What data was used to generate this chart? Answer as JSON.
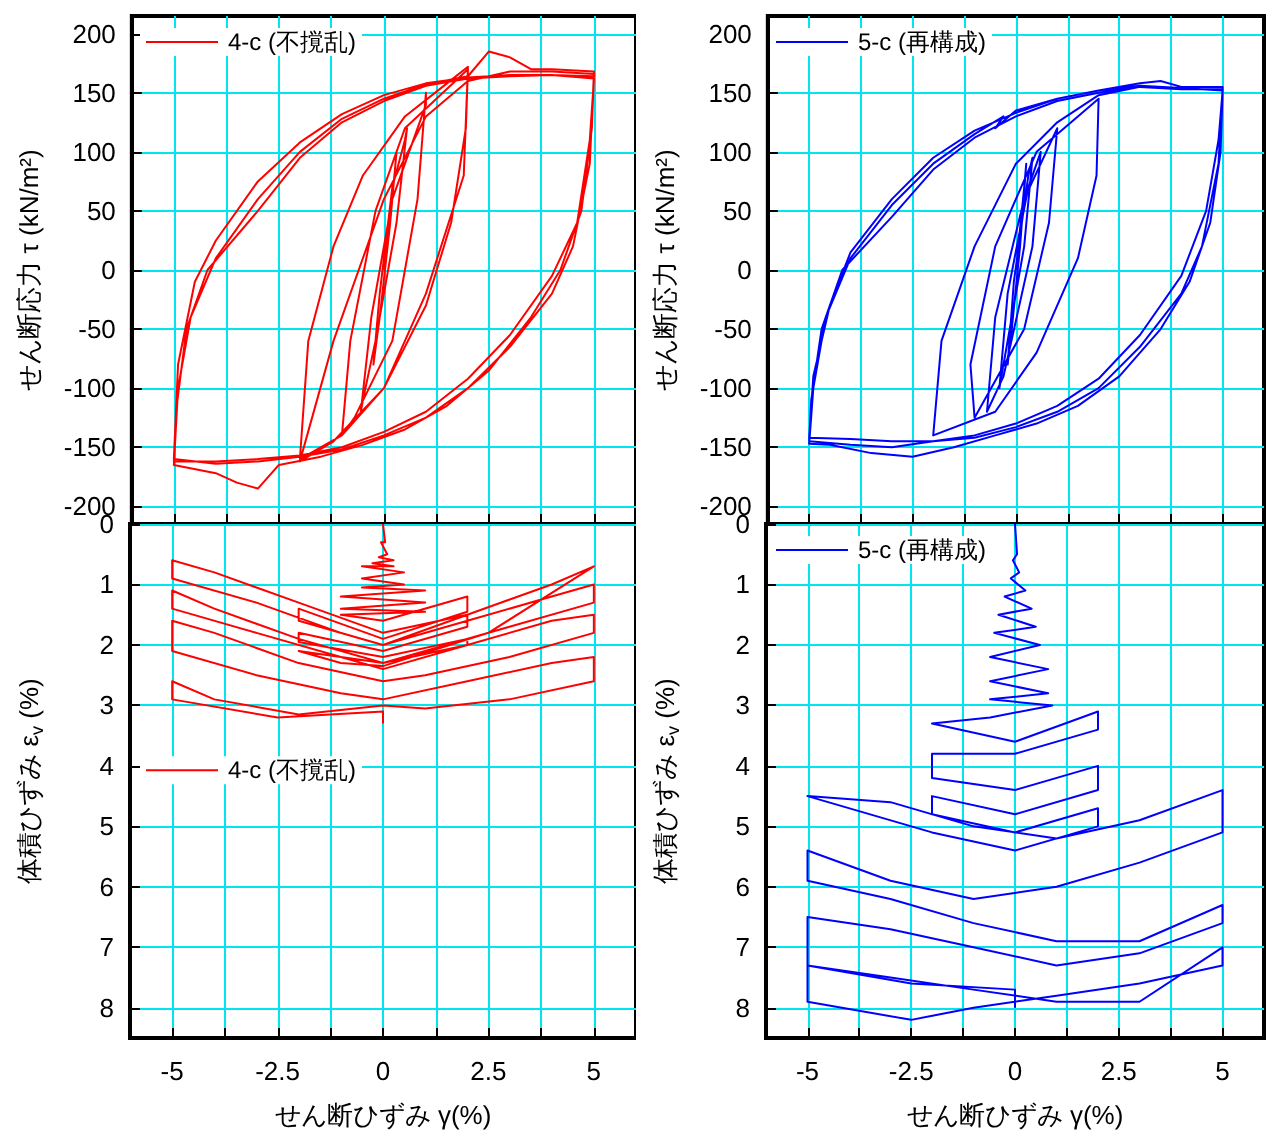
{
  "chart_data": [
    {
      "type": "line",
      "ylabel": "せん断応力 τ (kN/m²)",
      "xlim": [
        -6,
        6
      ],
      "xticks": [
        -5,
        {
          "value": -3.75,
          "label": null
        },
        -2.5,
        {
          "value": -1.25,
          "label": null
        },
        0,
        {
          "value": 1.25,
          "label": null
        },
        2.5,
        {
          "value": 3.75,
          "label": null
        },
        5
      ],
      "ylim": [
        -215,
        215
      ],
      "yticks": [
        -200,
        -150,
        -100,
        -50,
        0,
        50,
        100,
        150,
        200
      ],
      "tick_labels": "y",
      "grid": true,
      "legend": "top left",
      "marker": "none",
      "line_style": "solid",
      "series": [
        {
          "name": "4-c (不撹乱)",
          "color": "#ff0000",
          "x": [
            0,
            0.25,
            0.3,
            0.15,
            -0.1,
            -0.25,
            -0.1,
            0.2,
            0.5,
            0.55,
            0.3,
            -0.2,
            -0.5,
            -0.55,
            -0.3,
            0.2,
            1,
            1,
            0.8,
            0.2,
            -0.7,
            -1,
            -0.8,
            -0.2,
            0.5,
            2,
            1.95,
            1.6,
            1,
            0,
            -1,
            -2,
            -1.8,
            -1.2,
            -0.5,
            0.5,
            1.5,
            2,
            1.9,
            1,
            0,
            -1.2,
            -2,
            -1.2,
            0,
            1,
            2,
            3,
            4,
            5,
            4.95,
            4.7,
            4.2,
            3.5,
            2.5,
            1.5,
            0.5,
            -0.5,
            -1.5,
            -2.5,
            -3,
            -3.5,
            -4,
            -5,
            -4.9,
            -4.6,
            -4,
            -3,
            -2,
            -1,
            0,
            1,
            2,
            2.5,
            3,
            3.5,
            4,
            5,
            4.9,
            4.5,
            4,
            3,
            2,
            1,
            0,
            -1,
            -2,
            -3,
            -4,
            -5,
            -4.9,
            -4.5,
            -4,
            -3,
            -2,
            -1,
            0,
            1,
            2,
            3,
            4,
            5,
            4.9,
            4.6,
            4,
            3,
            2,
            1,
            0,
            -1,
            -2,
            -3,
            -4,
            -5,
            -4.95,
            -4.7,
            -4.2,
            -3,
            -2,
            -1,
            0,
            1,
            2,
            3,
            4,
            5
          ],
          "values": [
            0,
            80,
            100,
            40,
            -40,
            -80,
            -20,
            70,
            110,
            120,
            40,
            -60,
            -110,
            -120,
            -40,
            60,
            140,
            150,
            60,
            -60,
            -125,
            -140,
            -60,
            50,
            120,
            170,
            120,
            40,
            -30,
            -100,
            -140,
            -160,
            -60,
            20,
            80,
            130,
            158,
            172,
            80,
            -20,
            -100,
            -145,
            -162,
            -60,
            60,
            130,
            160,
            168,
            168,
            166,
            120,
            50,
            0,
            -40,
            -85,
            -115,
            -135,
            -148,
            -158,
            -165,
            -185,
            -180,
            -172,
            -165,
            -100,
            -40,
            10,
            60,
            100,
            128,
            145,
            157,
            164,
            185,
            180,
            170,
            170,
            168,
            90,
            20,
            -20,
            -65,
            -100,
            -125,
            -140,
            -152,
            -158,
            -162,
            -164,
            -160,
            -80,
            -10,
            25,
            75,
            108,
            132,
            148,
            158,
            163,
            165,
            165,
            162,
            110,
            40,
            -5,
            -55,
            -92,
            -120,
            -137,
            -150,
            -157,
            -160,
            -162,
            -162,
            -120,
            -50,
            0,
            50,
            95,
            125,
            143,
            156,
            162,
            164,
            165,
            164
          ]
        }
      ]
    },
    {
      "type": "line",
      "ylabel": "せん断応力 τ (kN/m²)",
      "xlim": [
        -6,
        6
      ],
      "xticks": [
        -5,
        {
          "value": -3.75,
          "label": null
        },
        -2.5,
        {
          "value": -1.25,
          "label": null
        },
        0,
        {
          "value": 1.25,
          "label": null
        },
        2.5,
        {
          "value": 3.75,
          "label": null
        },
        5
      ],
      "ylim": [
        -215,
        215
      ],
      "yticks": [
        -200,
        -150,
        -100,
        -50,
        0,
        50,
        100,
        150,
        200
      ],
      "tick_labels": "y",
      "grid": true,
      "legend": "top left",
      "marker": "none",
      "line_style": "solid",
      "series": [
        {
          "name": "5-c (再構成)",
          "color": "#0000ff",
          "x": [
            0,
            0.2,
            0.25,
            0.1,
            -0.1,
            -0.2,
            -0.05,
            0.3,
            0.4,
            0.2,
            -0.3,
            -0.4,
            -0.2,
            0.3,
            0.6,
            0.4,
            -0.3,
            -0.7,
            -0.5,
            0.2,
            1,
            0.8,
            0.2,
            -1,
            -1.1,
            -0.5,
            0.5,
            2,
            1.95,
            1.5,
            0.5,
            -0.5,
            -2,
            -1.8,
            -1,
            0,
            1,
            2,
            3,
            4,
            5,
            4.95,
            4.7,
            4.2,
            3.5,
            2.5,
            1.5,
            0.5,
            -0.5,
            -1.5,
            -2.5,
            -3.5,
            -4.5,
            -5,
            -4.9,
            -4.6,
            -4,
            -3,
            -2,
            -1,
            -0.3,
            -0.5,
            0,
            1,
            2,
            3,
            3.5,
            4,
            5,
            4.9,
            4.5,
            4,
            3,
            2,
            1,
            0,
            -1,
            -2,
            -3,
            -4,
            -5,
            -4.9,
            -4.5,
            -4,
            -3,
            -2,
            -1,
            0,
            1,
            2,
            3,
            4,
            5,
            4.9,
            4.6,
            4,
            3,
            2,
            1,
            0,
            -1,
            -2,
            -3,
            -4,
            -5,
            -4.95,
            -4.7,
            -4.2,
            -3,
            -2,
            -1,
            0,
            1,
            2,
            3,
            4,
            5
          ],
          "values": [
            0,
            70,
            90,
            20,
            -50,
            -80,
            -10,
            80,
            95,
            20,
            -80,
            -100,
            -20,
            70,
            100,
            20,
            -90,
            -120,
            -40,
            60,
            120,
            40,
            -50,
            -125,
            -80,
            20,
            100,
            145,
            80,
            10,
            -70,
            -120,
            -140,
            -60,
            20,
            90,
            125,
            148,
            155,
            153,
            153,
            100,
            40,
            -10,
            -50,
            -90,
            -115,
            -130,
            -140,
            -150,
            -158,
            -155,
            -148,
            -147,
            -100,
            -40,
            10,
            55,
            90,
            115,
            130,
            120,
            135,
            145,
            152,
            158,
            160,
            155,
            155,
            90,
            20,
            -20,
            -65,
            -100,
            -120,
            -133,
            -142,
            -145,
            -145,
            -143,
            -142,
            -90,
            -30,
            15,
            60,
            95,
            118,
            133,
            145,
            152,
            156,
            154,
            152,
            110,
            50,
            -5,
            -55,
            -92,
            -115,
            -130,
            -140,
            -145,
            -150,
            -148,
            -145,
            -110,
            -50,
            0,
            45,
            85,
            112,
            130,
            143,
            150,
            155,
            153,
            153
          ]
        }
      ]
    },
    {
      "type": "line",
      "ylabel": "体積ひずみ ε$_{v}$ (%)",
      "xlabel": "せん断ひずみ γ(%)",
      "xlim": [
        -6,
        6
      ],
      "xticks": [
        -5,
        {
          "value": -3.75,
          "label": null
        },
        -2.5,
        {
          "value": -1.25,
          "label": null
        },
        0,
        {
          "value": 1.25,
          "label": null
        },
        2.5,
        {
          "value": 3.75,
          "label": null
        },
        5
      ],
      "ylim": [
        8.5,
        0
      ],
      "yticks": [
        0,
        1,
        2,
        3,
        4,
        5,
        6,
        7,
        8
      ],
      "grid": true,
      "legend": "left",
      "marker": "none",
      "line_style": "solid",
      "series": [
        {
          "name": "4-c (不撹乱)",
          "color": "#ff0000",
          "x": [
            0,
            0.05,
            -0.05,
            0.1,
            -0.1,
            0.25,
            -0.25,
            0.25,
            -0.5,
            0.5,
            -0.5,
            0.5,
            -0.5,
            1,
            -1,
            1,
            -1,
            1,
            -1,
            0,
            2,
            2,
            0,
            -2,
            -2,
            0,
            2,
            2,
            0,
            -2,
            -2,
            0,
            2,
            2,
            0,
            -2,
            -1,
            0,
            2.5,
            5,
            4,
            2,
            0,
            -2,
            -4,
            -5,
            -5,
            -3,
            -1,
            0,
            2,
            4,
            5,
            5,
            3,
            1,
            0,
            -2,
            -4,
            -5,
            -5,
            -3,
            -1,
            0,
            2,
            4,
            5,
            5,
            3,
            1,
            0,
            -2,
            -4,
            -5,
            -5,
            -3,
            -1,
            0,
            2,
            4,
            5,
            5,
            3,
            1,
            0,
            -2,
            -4,
            -5,
            -5,
            -2.5,
            0,
            0
          ],
          "values": [
            0,
            0.3,
            0.3,
            0.5,
            0.55,
            0.6,
            0.65,
            0.7,
            0.7,
            0.8,
            0.9,
            1.0,
            1.05,
            1.1,
            1.2,
            1.3,
            1.4,
            1.45,
            1.5,
            1.6,
            1.2,
            1.45,
            1.9,
            1.4,
            1.6,
            2.0,
            1.5,
            1.7,
            2.1,
            1.8,
            1.95,
            2.2,
            1.9,
            2.0,
            2.3,
            2.1,
            2.3,
            2.35,
            1.8,
            0.7,
            1.0,
            1.5,
            1.8,
            1.3,
            0.8,
            0.6,
            0.9,
            1.3,
            1.8,
            2.0,
            1.6,
            1.2,
            1.0,
            1.3,
            1.7,
            2.1,
            2.3,
            1.9,
            1.4,
            1.1,
            1.4,
            1.8,
            2.2,
            2.4,
            2.0,
            1.6,
            1.5,
            1.8,
            2.2,
            2.5,
            2.6,
            2.3,
            1.8,
            1.6,
            2.1,
            2.5,
            2.8,
            2.9,
            2.6,
            2.3,
            2.2,
            2.6,
            2.9,
            3.05,
            3.0,
            3.15,
            2.9,
            2.6,
            2.9,
            3.2,
            3.1,
            3.3
          ]
        }
      ]
    },
    {
      "type": "line",
      "ylabel": "体積ひずみ ε$_{v}$ (%)",
      "xlabel": "せん断ひずみ γ(%)",
      "xlim": [
        -6,
        6
      ],
      "xticks": [
        -5,
        {
          "value": -3.75,
          "label": null
        },
        -2.5,
        {
          "value": -1.25,
          "label": null
        },
        0,
        {
          "value": 1.25,
          "label": null
        },
        2.5,
        {
          "value": 3.75,
          "label": null
        },
        5
      ],
      "ylim": [
        8.5,
        0
      ],
      "yticks": [
        0,
        1,
        2,
        3,
        4,
        5,
        6,
        7,
        8
      ],
      "grid": true,
      "legend": "top left",
      "marker": "none",
      "line_style": "solid",
      "series": [
        {
          "name": "5-c (再構成)",
          "color": "#0000ff",
          "x": [
            0,
            0.05,
            -0.05,
            0.1,
            -0.1,
            0.25,
            -0.25,
            0.4,
            -0.4,
            0.5,
            -0.5,
            0.6,
            -0.6,
            0.8,
            -0.6,
            0.8,
            -0.6,
            0.9,
            -0.6,
            -2,
            0,
            2,
            2,
            0,
            -2,
            -2,
            0,
            2,
            2,
            0,
            -2,
            -2,
            0,
            2,
            2,
            0,
            -2,
            -5,
            -3,
            -1,
            1,
            3,
            5,
            5,
            3,
            1,
            -1,
            -3,
            -5,
            -5,
            -3,
            -1,
            1,
            3,
            5,
            5,
            3,
            1,
            -1,
            -3,
            -5,
            -5,
            -3,
            -1,
            1,
            3,
            5,
            5,
            3,
            1,
            -1,
            -2.5,
            -5,
            -5,
            -2.5,
            0,
            0
          ],
          "values": [
            0,
            0.5,
            0.6,
            0.8,
            0.9,
            1.1,
            1.2,
            1.4,
            1.5,
            1.7,
            1.8,
            2.0,
            2.2,
            2.4,
            2.6,
            2.8,
            2.9,
            3.0,
            3.2,
            3.3,
            3.6,
            3.1,
            3.4,
            3.8,
            3.8,
            4.2,
            4.4,
            4.0,
            4.4,
            4.8,
            4.5,
            4.8,
            5.1,
            4.7,
            5.0,
            5.4,
            5.1,
            4.5,
            4.6,
            5.0,
            5.2,
            4.9,
            4.4,
            5.1,
            5.6,
            6.0,
            6.2,
            5.9,
            5.4,
            5.9,
            6.2,
            6.6,
            6.9,
            6.9,
            6.3,
            6.6,
            7.1,
            7.3,
            7.0,
            6.7,
            6.5,
            7.3,
            7.5,
            7.7,
            7.9,
            7.9,
            7.0,
            7.3,
            7.6,
            7.8,
            8.0,
            8.2,
            7.9,
            7.3,
            7.6,
            7.7,
            8.0
          ]
        }
      ]
    }
  ]
}
